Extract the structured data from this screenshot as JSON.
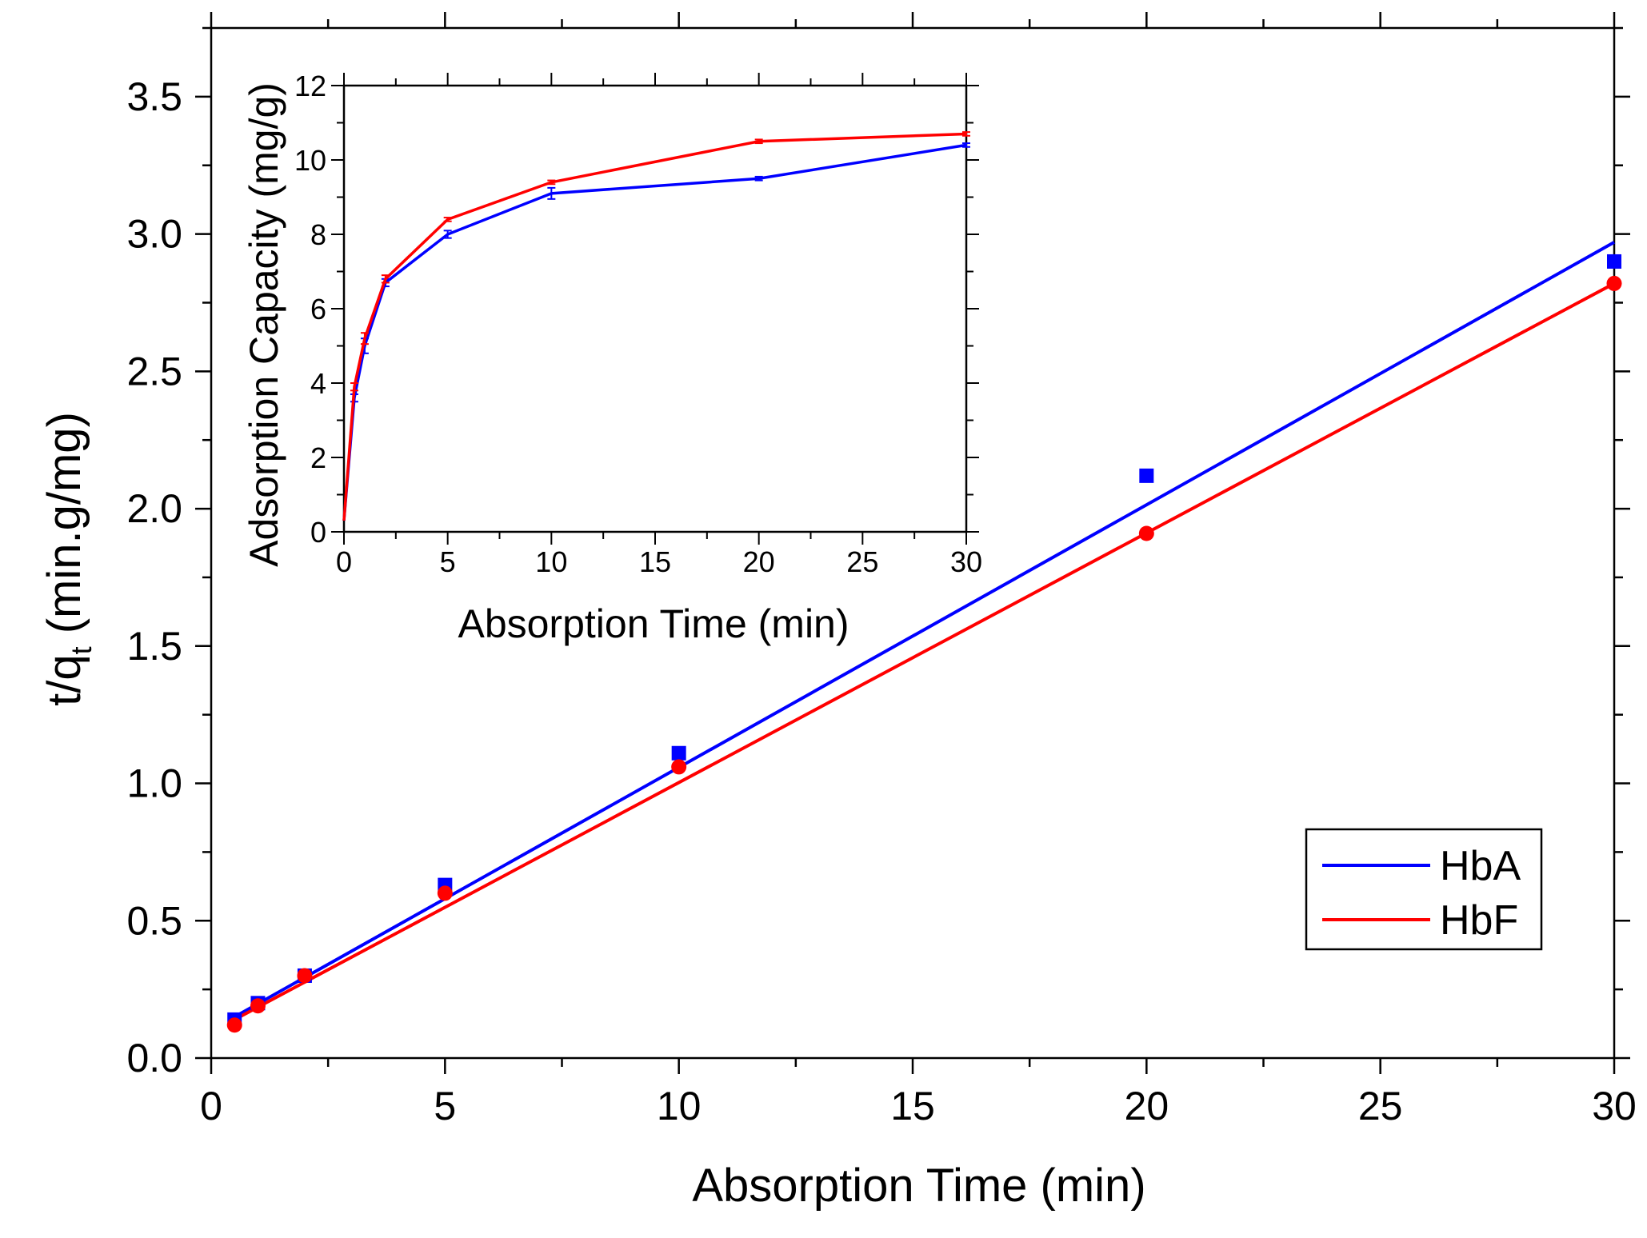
{
  "colors": {
    "HbA": "#0000ff",
    "HbF": "#ff0000",
    "axis": "#000000"
  },
  "chart_data": [
    {
      "id": "main",
      "type": "scatter",
      "xlabel": "Absorption Time (min)",
      "ylabel_main": "t/q",
      "ylabel_sub": "t",
      "ylabel_unit": " (min.g/mg)",
      "xlim": [
        0,
        30
      ],
      "ylim": [
        0,
        3.75
      ],
      "xticks": [
        0,
        5,
        10,
        15,
        20,
        25,
        30
      ],
      "xtick_labels": [
        "0",
        "5",
        "10",
        "15",
        "20",
        "25",
        "30"
      ],
      "yticks": [
        0,
        0.5,
        1.0,
        1.5,
        2.0,
        2.5,
        3.0,
        3.5
      ],
      "ytick_labels": [
        "0.0",
        "0.5",
        "1.0",
        "1.5",
        "2.0",
        "2.5",
        "3.0",
        "3.5"
      ],
      "grid": false,
      "legend_position": "bottom-right",
      "series": [
        {
          "name": "HbA",
          "color": "#0000ff",
          "marker": "square",
          "x": [
            0.5,
            1,
            2,
            5,
            10,
            20,
            30
          ],
          "y": [
            0.14,
            0.2,
            0.3,
            0.63,
            1.11,
            2.12,
            2.9
          ],
          "fit": {
            "x": [
              0.5,
              30
            ],
            "y": [
              0.15,
              2.97
            ]
          }
        },
        {
          "name": "HbF",
          "color": "#ff0000",
          "marker": "circle",
          "x": [
            0.5,
            1,
            2,
            5,
            10,
            20,
            30
          ],
          "y": [
            0.12,
            0.19,
            0.3,
            0.6,
            1.06,
            1.91,
            2.82
          ],
          "fit": {
            "x": [
              0.5,
              30
            ],
            "y": [
              0.14,
              2.82
            ]
          }
        }
      ]
    },
    {
      "id": "inset",
      "type": "line",
      "xlabel": "Absorption Time (min)",
      "ylabel": "Adsorption Capacity (mg/g)",
      "xlim": [
        0,
        30
      ],
      "ylim": [
        0,
        12
      ],
      "xticks": [
        0,
        5,
        10,
        15,
        20,
        25,
        30
      ],
      "xtick_labels": [
        "0",
        "5",
        "10",
        "15",
        "20",
        "25",
        "30"
      ],
      "yticks": [
        0,
        2,
        4,
        6,
        8,
        10,
        12
      ],
      "ytick_labels": [
        "0",
        "2",
        "4",
        "6",
        "8",
        "10",
        "12"
      ],
      "grid": false,
      "series": [
        {
          "name": "HbA",
          "color": "#0000ff",
          "x": [
            0,
            0.5,
            1,
            2,
            5,
            10,
            20,
            30
          ],
          "y": [
            0.3,
            3.6,
            5.0,
            6.7,
            8.0,
            9.1,
            9.5,
            10.4
          ],
          "err": [
            0,
            0.1,
            0.2,
            0.1,
            0.1,
            0.15,
            0.05,
            0.05
          ]
        },
        {
          "name": "HbF",
          "color": "#ff0000",
          "x": [
            0,
            0.5,
            1,
            2,
            5,
            10,
            20,
            30
          ],
          "y": [
            0.3,
            3.9,
            5.2,
            6.8,
            8.4,
            9.4,
            10.5,
            10.7
          ],
          "err": [
            0,
            0.1,
            0.15,
            0.1,
            0.05,
            0.05,
            0.05,
            0.05
          ]
        }
      ]
    }
  ]
}
